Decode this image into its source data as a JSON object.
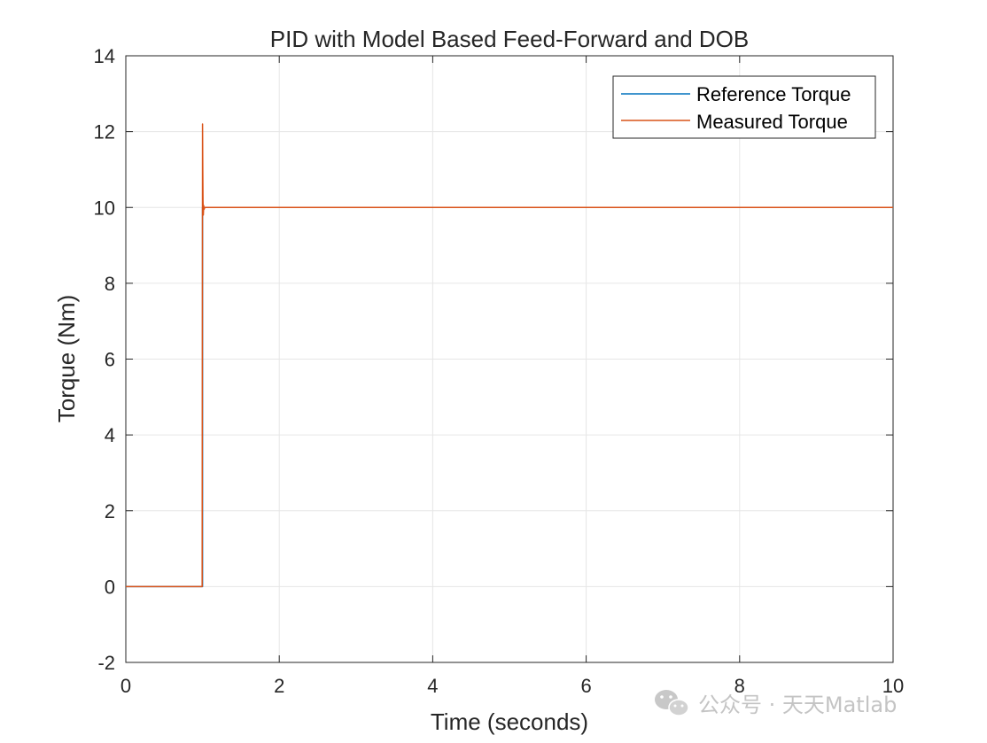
{
  "chart_data": {
    "type": "line",
    "title": "PID with Model Based Feed-Forward and DOB",
    "xlabel": "Time (seconds)",
    "ylabel": "Torque (Nm)",
    "xlim": [
      0,
      10
    ],
    "ylim": [
      -2,
      14
    ],
    "xticks": [
      0,
      2,
      4,
      6,
      8,
      10
    ],
    "yticks": [
      -2,
      0,
      2,
      4,
      6,
      8,
      10,
      12,
      14
    ],
    "grid": true,
    "legend_position": "top-right",
    "series": [
      {
        "name": "Reference Torque",
        "color": "#0072BD",
        "x": [
          0,
          1.0,
          1.0,
          10
        ],
        "y": [
          0,
          0,
          10,
          10
        ]
      },
      {
        "name": "Measured Torque",
        "color": "#D95319",
        "x": [
          0,
          0.995,
          1.0,
          1.003,
          1.006,
          1.01,
          1.015,
          1.02,
          1.03,
          1.05,
          1.1,
          10
        ],
        "y": [
          0,
          0,
          12.2,
          11.0,
          10.2,
          9.8,
          10.05,
          9.95,
          10.0,
          10.0,
          10.0,
          10.0
        ]
      }
    ]
  },
  "watermark": {
    "icon": "wechat-icon",
    "text": "公众号 · 天天Matlab"
  }
}
